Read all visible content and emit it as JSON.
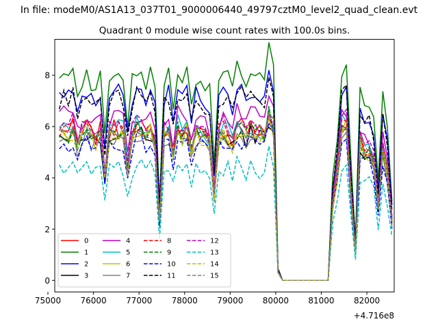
{
  "chart_data": {
    "type": "line",
    "suptitle": "In file: modeM0/AS1A13_037T01_9000006440_49797cztM0_level2_quad_clean.evt",
    "title": "Quadrant 0 module wise count rates with 100.0s bins.",
    "xlabel": "",
    "ylabel": "",
    "x_offset_label": "+4.716e8",
    "xlim": [
      75150,
      82600
    ],
    "ylim": [
      -0.45,
      9.4
    ],
    "xticks": [
      75000,
      76000,
      77000,
      78000,
      79000,
      80000,
      81000,
      82000
    ],
    "xtick_labels": [
      "75000",
      "76000",
      "77000",
      "78000",
      "79000",
      "80000",
      "81000",
      "82000"
    ],
    "yticks": [
      0,
      2,
      4,
      6,
      8
    ],
    "ytick_labels": [
      "0",
      "2",
      "4",
      "6",
      "8"
    ],
    "x_start": 75250,
    "x_step": 100,
    "legend": {
      "placement": "lower-left",
      "ncol": 4
    },
    "series": [
      {
        "name": "0",
        "color": "#ff0000",
        "style": "solid",
        "level": 5.8
      },
      {
        "name": "1",
        "color": "#008000",
        "style": "solid",
        "level": 7.9
      },
      {
        "name": "2",
        "color": "#0000ff",
        "style": "solid",
        "level": 7.2
      },
      {
        "name": "3",
        "color": "#000000",
        "style": "solid",
        "level": 5.6
      },
      {
        "name": "4",
        "color": "#bf00bf",
        "style": "solid",
        "level": 6.3
      },
      {
        "name": "5",
        "color": "#00bfbf",
        "style": "solid",
        "level": 5.9
      },
      {
        "name": "6",
        "color": "#bfbf00",
        "style": "solid",
        "level": 5.7
      },
      {
        "name": "7",
        "color": "#808080",
        "style": "solid",
        "level": 5.5
      },
      {
        "name": "8",
        "color": "#ff0000",
        "style": "dashed",
        "level": 5.9
      },
      {
        "name": "9",
        "color": "#008000",
        "style": "dashed",
        "level": 5.7
      },
      {
        "name": "10",
        "color": "#0000ff",
        "style": "dashed",
        "level": 5.3
      },
      {
        "name": "11",
        "color": "#000000",
        "style": "dashed",
        "level": 7.0
      },
      {
        "name": "12",
        "color": "#bf00bf",
        "style": "dashed",
        "level": 6.0
      },
      {
        "name": "13",
        "color": "#00bfbf",
        "style": "dashed",
        "level": 4.3
      },
      {
        "name": "14",
        "color": "#bfbf00",
        "style": "dashed",
        "level": 5.6
      },
      {
        "name": "15",
        "color": "#808080",
        "style": "dashed",
        "level": 5.8
      }
    ],
    "shape_factors": [
      1.0,
      1.03,
      1.0,
      1.03,
      0.93,
      0.98,
      1.03,
      0.98,
      0.96,
      1.01,
      0.71,
      0.99,
      1.02,
      1.02,
      1.01,
      0.77,
      0.99,
      1.03,
      1.02,
      0.98,
      1.02,
      0.94,
      0.39,
      0.99,
      1.02,
      0.86,
      1.04,
      0.98,
      1.03,
      0.88,
      1.01,
      0.99,
      0.97,
      0.93,
      0.59,
      0.98,
      1.02,
      1.0,
      0.94,
      1.04,
      1.03,
      0.98,
      1.02,
      1.02,
      1.0,
      0.99,
      1.13,
      1.04,
      0.06,
      0,
      0,
      0,
      0,
      0,
      0,
      0,
      0,
      0,
      0,
      0,
      0.52,
      0.72,
      1.04,
      1.05,
      0.58,
      0.2,
      0.95,
      0.88,
      0.88,
      0.8,
      0.49,
      0.9,
      0.73,
      0.4
    ],
    "noise_seed": 7
  }
}
